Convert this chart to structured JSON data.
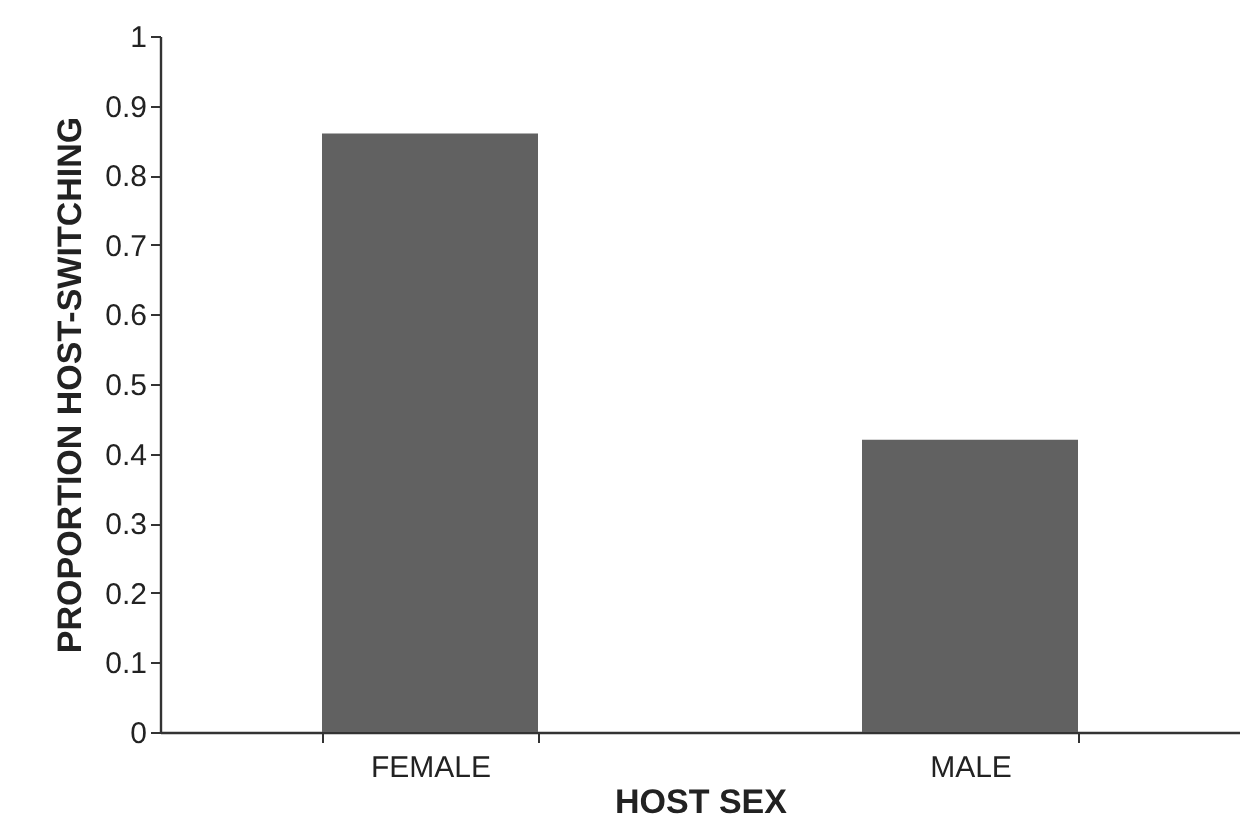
{
  "chart_data": {
    "type": "bar",
    "xlabel": "HOST SEX",
    "ylabel": "PROPORTION HOST-SWITCHING",
    "categories": [
      "FEMALE",
      "MALE"
    ],
    "values": [
      0.86,
      0.42
    ],
    "color": "#616161",
    "ylim": [
      0,
      1
    ],
    "yticks": [
      0,
      0.1,
      0.2,
      0.3,
      0.4,
      0.5,
      0.6,
      0.7,
      0.8,
      0.9,
      1
    ],
    "grid": false
  }
}
